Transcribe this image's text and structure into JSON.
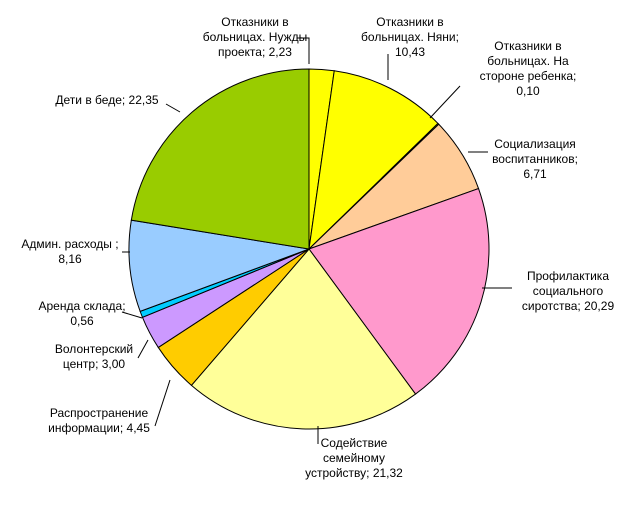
{
  "chart_data": {
    "type": "pie",
    "start_angle_deg": 0,
    "direction": "clockwise",
    "slices": [
      {
        "label": [
          "Отказники в",
          "больницах. Нужды",
          "проекта; 2,23"
        ],
        "value": 2.23,
        "color": "#ffff00"
      },
      {
        "label": [
          "Отказники в",
          "больницах. Няни;",
          "10,43"
        ],
        "value": 10.43,
        "color": "#ffff00"
      },
      {
        "label": [
          "Отказники в",
          "больницах. На",
          "стороне ребенка;",
          "0,10"
        ],
        "value": 0.1,
        "color": "#ffff00"
      },
      {
        "label": [
          "Социализация",
          "воспитанников;",
          "6,71"
        ],
        "value": 6.71,
        "color": "#ffcc99"
      },
      {
        "label": [
          "Профилактика",
          "социального",
          "сиротства; 20,29"
        ],
        "value": 20.29,
        "color": "#ff99cc"
      },
      {
        "label": [
          "Содействие",
          "семейному",
          "устройству; 21,32"
        ],
        "value": 21.32,
        "color": "#ffff99"
      },
      {
        "label": [
          "Распространение",
          "информации; 4,45"
        ],
        "value": 4.45,
        "color": "#ffcc00"
      },
      {
        "label": [
          "Волонтерский",
          "центр; 3,00"
        ],
        "value": 3.0,
        "color": "#cc99ff"
      },
      {
        "label": [
          "Аренда склада;",
          "0,56"
        ],
        "value": 0.56,
        "color": "#00ccff"
      },
      {
        "label": [
          "Админ. расходы ;",
          "8,16"
        ],
        "value": 8.16,
        "color": "#99ccff"
      },
      {
        "label": [
          "Дети в беде; 22,35"
        ],
        "value": 22.35,
        "color": "#99cc00"
      }
    ]
  }
}
